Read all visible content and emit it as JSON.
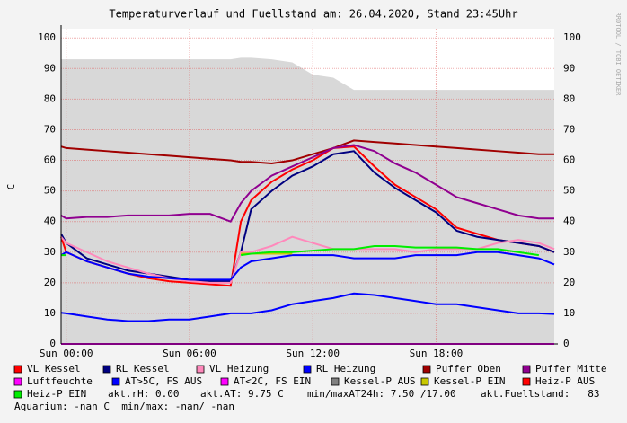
{
  "chart_data": {
    "type": "line",
    "title": "Temperaturverlauf und Fuellstand am: 26.04.2020, Stand 23:45Uhr",
    "y_label": "C",
    "watermark": "RRDTOOL / TOBI OETIKER",
    "x": [
      -0.25,
      0,
      1,
      2,
      3,
      4,
      5,
      6,
      7,
      8,
      8.5,
      9,
      10,
      11,
      12,
      13,
      14,
      15,
      16,
      17,
      18,
      19,
      20,
      21,
      22,
      23,
      23.75
    ],
    "xlim": [
      -0.25,
      23.75
    ],
    "xticks": [
      {
        "value": 0,
        "label": "Sun 00:00"
      },
      {
        "value": 6,
        "label": "Sun 06:00"
      },
      {
        "value": 12,
        "label": "Sun 12:00"
      },
      {
        "value": 18,
        "label": "Sun 18:00"
      }
    ],
    "ylim": [
      0,
      103
    ],
    "yticks": [
      0,
      10,
      20,
      30,
      40,
      50,
      60,
      70,
      80,
      90,
      100
    ],
    "grid": true,
    "series": [
      {
        "name": "VL Kessel",
        "color": "#ff0000",
        "style": "line",
        "values": [
          35,
          30,
          27,
          25,
          23,
          21.5,
          20.5,
          20,
          19.5,
          19,
          40,
          47,
          53,
          57,
          60,
          64,
          64.5,
          58,
          52,
          48,
          44,
          38,
          36,
          34,
          33,
          32,
          30
        ]
      },
      {
        "name": "RL Kessel",
        "color": "#000080",
        "style": "line",
        "values": [
          36,
          33,
          28,
          26,
          24,
          23,
          22,
          21,
          20.5,
          20.5,
          30,
          44,
          50,
          55,
          58,
          62,
          63,
          56,
          51,
          47,
          43,
          37,
          35,
          34,
          33,
          32,
          30
        ]
      },
      {
        "name": "VL Heizung",
        "color": "#ff88bb",
        "style": "line",
        "values": [
          35,
          33,
          30,
          27,
          25,
          23,
          21.5,
          20.5,
          20,
          20,
          30,
          30,
          32,
          35,
          33,
          31,
          31,
          31,
          31,
          30,
          31,
          31,
          31,
          33,
          34,
          33,
          31
        ]
      },
      {
        "name": "RL Heizung",
        "color": "#0000ff",
        "style": "line",
        "values": [
          29,
          30,
          27,
          25,
          23,
          22,
          21.5,
          21,
          21,
          21,
          25,
          27,
          28,
          29,
          29,
          29,
          28,
          28,
          28,
          29,
          29,
          29,
          30,
          30,
          29,
          28,
          26
        ]
      },
      {
        "name": "Puffer Oben",
        "color": "#a00000",
        "style": "line",
        "values": [
          64.5,
          64,
          63.5,
          63,
          62.5,
          62,
          61.5,
          61,
          60.5,
          60,
          59.5,
          59.5,
          59,
          60,
          62,
          64,
          66.5,
          66,
          65.5,
          65,
          64.5,
          64,
          63.5,
          63,
          62.5,
          62,
          62
        ]
      },
      {
        "name": "Puffer Mitte",
        "color": "#900090",
        "style": "line",
        "values": [
          42,
          41,
          41.5,
          41.5,
          42,
          42,
          42,
          42.5,
          42.5,
          40,
          46,
          50,
          55,
          58,
          61,
          64,
          65,
          63,
          59,
          56,
          52,
          48,
          46,
          44,
          42,
          41,
          41
        ]
      },
      {
        "name": "Luftfeuchte",
        "color": "#ff00ff",
        "style": "line",
        "values": [
          0,
          0,
          0,
          0,
          0,
          0,
          0,
          0,
          0,
          0,
          0,
          0,
          0,
          0,
          0,
          0,
          0,
          0,
          0,
          0,
          0,
          0,
          0,
          0,
          0,
          0,
          0
        ]
      },
      {
        "name": "AT>5C, FS AUS",
        "color": "#0000ff",
        "style": "line",
        "values": [
          10.2,
          10,
          9,
          8,
          7.5,
          7.5,
          8,
          8,
          9,
          10,
          10,
          10,
          11,
          13,
          14,
          15,
          16.5,
          16,
          15,
          14,
          13,
          13,
          12,
          11,
          10,
          10,
          9.8
        ]
      },
      {
        "name": "AT<2C, FS EIN",
        "color": "#ff00ff"
      },
      {
        "name": "Kessel-P AUS",
        "color": "#808080",
        "style": "area",
        "area_color": "#d8d8d8",
        "values": [
          93,
          93,
          93,
          93,
          93,
          93,
          93,
          93,
          93,
          93,
          93.5,
          93.5,
          93,
          92,
          88,
          87,
          83,
          83,
          83,
          83,
          83,
          83,
          83,
          83,
          83,
          83,
          83
        ]
      },
      {
        "name": "Kessel-P EIN",
        "color": "#c8c800",
        "style": "line",
        "values": [
          null,
          null,
          null,
          null,
          null,
          null,
          null,
          null,
          null,
          null,
          29.5,
          29.5,
          29.5,
          29.5,
          null,
          null,
          null,
          null,
          null,
          null,
          null,
          null,
          null,
          null,
          null,
          null,
          null
        ]
      },
      {
        "name": "Heiz-P AUS",
        "color": "#ff0000"
      },
      {
        "name": "Heiz-P EIN",
        "color": "#00ee00",
        "style": "line",
        "values": [
          29,
          29,
          null,
          null,
          null,
          null,
          null,
          null,
          null,
          null,
          29,
          29.5,
          30,
          30,
          30.5,
          31,
          31,
          32,
          32,
          31.5,
          31.5,
          31.5,
          31,
          31,
          30,
          29,
          null
        ]
      }
    ],
    "status": [
      "akt.rH: 0.00",
      "akt.AT: 9.75 C",
      "min/maxAT24h: 7.50 /17.00",
      "akt.Fuellstand:   83",
      "Aquarium: -nan C  min/max: -nan/ -nan"
    ]
  }
}
